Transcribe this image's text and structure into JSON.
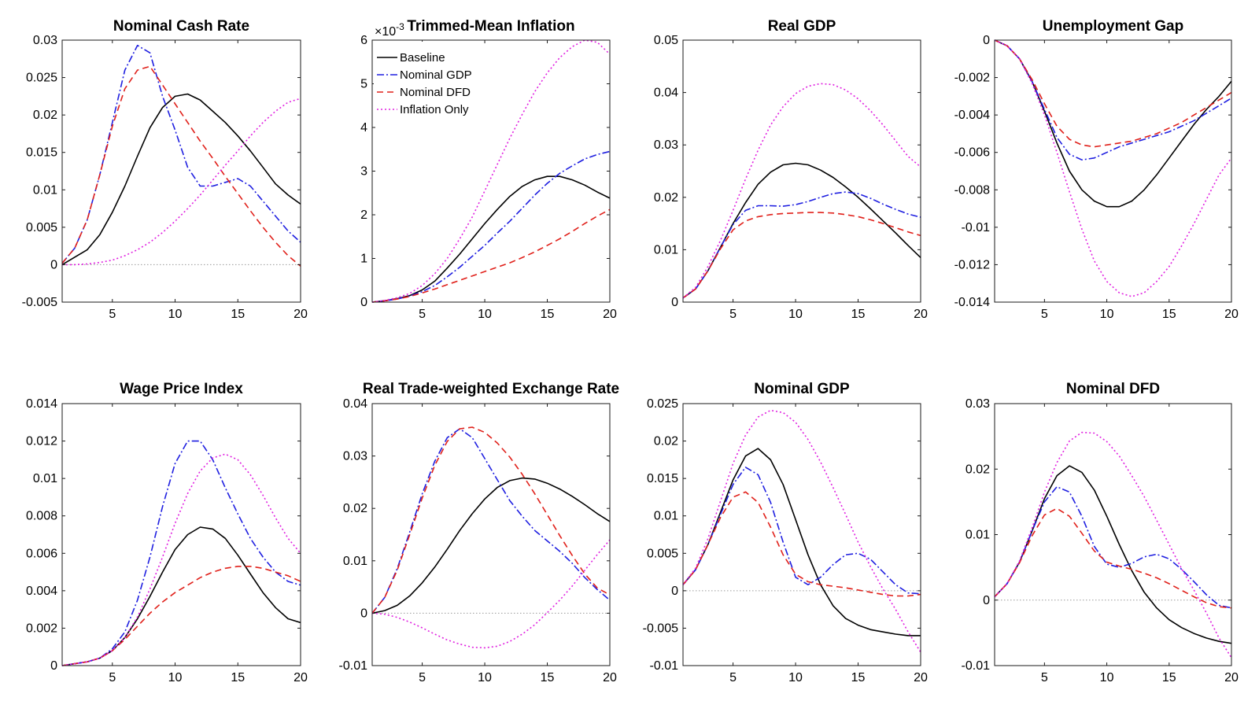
{
  "series_styles": [
    {
      "name": "Baseline",
      "color": "#000000",
      "dash": "none"
    },
    {
      "name": "Nominal GDP",
      "color": "#1f1fe0",
      "dash": "9 3 2 3"
    },
    {
      "name": "Nominal DFD",
      "color": "#e0201a",
      "dash": "8 5"
    },
    {
      "name": "Inflation Only",
      "color": "#e020e0",
      "dash": "2 3"
    }
  ],
  "chart_data": [
    {
      "type": "line",
      "title": "Nominal Cash Rate",
      "xlim": [
        1,
        20
      ],
      "xticks": [
        "5",
        "10",
        "15",
        "20"
      ],
      "ylim": [
        -0.005,
        0.03
      ],
      "yticks": [
        "-0.005",
        "0",
        "0.005",
        "0.01",
        "0.015",
        "0.02",
        "0.025",
        "0.03"
      ],
      "series": [
        {
          "values": [
            0.0,
            0.001,
            0.002,
            0.004,
            0.007,
            0.0105,
            0.0145,
            0.0183,
            0.021,
            0.0225,
            0.0228,
            0.022,
            0.0205,
            0.019,
            0.0172,
            0.0152,
            0.013,
            0.0108,
            0.0093,
            0.0081
          ]
        },
        {
          "values": [
            0.0002,
            0.0022,
            0.006,
            0.012,
            0.019,
            0.026,
            0.0293,
            0.0283,
            0.0225,
            0.018,
            0.013,
            0.0105,
            0.0105,
            0.011,
            0.0115,
            0.0105,
            0.0085,
            0.0065,
            0.0045,
            0.003
          ]
        },
        {
          "values": [
            0.0002,
            0.0022,
            0.006,
            0.012,
            0.0185,
            0.0235,
            0.026,
            0.0265,
            0.024,
            0.0215,
            0.019,
            0.0165,
            0.0142,
            0.0118,
            0.0095,
            0.0072,
            0.005,
            0.003,
            0.0012,
            -0.0002
          ]
        },
        {
          "values": [
            0.0,
            0.0,
            0.0001,
            0.0003,
            0.0006,
            0.0012,
            0.002,
            0.003,
            0.0043,
            0.0058,
            0.0075,
            0.0093,
            0.0113,
            0.0133,
            0.0152,
            0.0172,
            0.019,
            0.0205,
            0.0217,
            0.0222
          ]
        }
      ],
      "zero_line": true
    },
    {
      "type": "line",
      "title": "Trimmed-Mean Inflation",
      "axis_multiplier": "×10",
      "axis_multiplier_exp": "-3",
      "xlim": [
        1,
        20
      ],
      "xticks": [
        "5",
        "10",
        "15",
        "20"
      ],
      "ylim": [
        0,
        6
      ],
      "yticks": [
        "0",
        "1",
        "2",
        "3",
        "4",
        "5",
        "6"
      ],
      "legend": {
        "placement": "top-left",
        "entries": [
          "Baseline",
          "Nominal GDP",
          "Nominal DFD",
          "Inflation Only"
        ]
      },
      "series": [
        {
          "values": [
            0.0,
            0.03,
            0.08,
            0.15,
            0.28,
            0.48,
            0.78,
            1.1,
            1.45,
            1.8,
            2.12,
            2.42,
            2.65,
            2.8,
            2.88,
            2.88,
            2.8,
            2.68,
            2.52,
            2.38
          ]
        },
        {
          "values": [
            0.0,
            0.03,
            0.07,
            0.14,
            0.24,
            0.38,
            0.58,
            0.8,
            1.05,
            1.3,
            1.58,
            1.85,
            2.15,
            2.45,
            2.72,
            2.95,
            3.12,
            3.28,
            3.38,
            3.45
          ]
        },
        {
          "values": [
            0.0,
            0.03,
            0.07,
            0.13,
            0.21,
            0.3,
            0.4,
            0.5,
            0.6,
            0.7,
            0.8,
            0.9,
            1.02,
            1.15,
            1.3,
            1.45,
            1.62,
            1.8,
            1.97,
            2.12
          ]
        },
        {
          "values": [
            0.0,
            0.04,
            0.1,
            0.2,
            0.38,
            0.65,
            1.0,
            1.45,
            1.95,
            2.55,
            3.15,
            3.75,
            4.3,
            4.82,
            5.25,
            5.6,
            5.85,
            6.0,
            5.95,
            5.68
          ]
        }
      ]
    },
    {
      "type": "line",
      "title": "Real GDP",
      "xlim": [
        1,
        20
      ],
      "xticks": [
        "5",
        "10",
        "15",
        "20"
      ],
      "ylim": [
        0,
        0.05
      ],
      "yticks": [
        "0",
        "0.01",
        "0.02",
        "0.03",
        "0.04",
        "0.05"
      ],
      "series": [
        {
          "values": [
            0.0008,
            0.0025,
            0.006,
            0.0105,
            0.015,
            0.019,
            0.0225,
            0.0248,
            0.0262,
            0.0265,
            0.0262,
            0.0252,
            0.0238,
            0.022,
            0.02,
            0.0178,
            0.0155,
            0.0132,
            0.0108,
            0.0085
          ]
        },
        {
          "values": [
            0.0008,
            0.0025,
            0.006,
            0.0105,
            0.0148,
            0.0175,
            0.0184,
            0.0184,
            0.0183,
            0.0186,
            0.0192,
            0.02,
            0.0207,
            0.021,
            0.0207,
            0.0198,
            0.0187,
            0.0177,
            0.0168,
            0.0162
          ]
        },
        {
          "values": [
            0.0008,
            0.0025,
            0.006,
            0.0102,
            0.0138,
            0.0155,
            0.0163,
            0.0167,
            0.0169,
            0.017,
            0.0171,
            0.0171,
            0.017,
            0.0167,
            0.0163,
            0.0157,
            0.015,
            0.0142,
            0.0134,
            0.0127
          ]
        },
        {
          "values": [
            0.0008,
            0.0028,
            0.0068,
            0.0118,
            0.0175,
            0.0235,
            0.029,
            0.0338,
            0.0373,
            0.0398,
            0.0412,
            0.0417,
            0.0415,
            0.0405,
            0.0388,
            0.0365,
            0.0338,
            0.0308,
            0.0278,
            0.0258
          ]
        }
      ]
    },
    {
      "type": "line",
      "title": "Unemployment Gap",
      "xlim": [
        1,
        20
      ],
      "xticks": [
        "5",
        "10",
        "15",
        "20"
      ],
      "ylim": [
        -0.014,
        0
      ],
      "yticks": [
        "-0.014",
        "-0.012",
        "-0.01",
        "-0.008",
        "-0.006",
        "-0.004",
        "-0.002",
        "0"
      ],
      "series": [
        {
          "values": [
            0.0,
            -0.0003,
            -0.001,
            -0.0022,
            -0.0038,
            -0.0055,
            -0.007,
            -0.008,
            -0.0086,
            -0.0089,
            -0.0089,
            -0.0086,
            -0.008,
            -0.0072,
            -0.0063,
            -0.0054,
            -0.0045,
            -0.0037,
            -0.003,
            -0.0022
          ]
        },
        {
          "values": [
            0.0,
            -0.0003,
            -0.001,
            -0.0022,
            -0.0037,
            -0.0052,
            -0.0061,
            -0.0064,
            -0.0063,
            -0.006,
            -0.0057,
            -0.0055,
            -0.0053,
            -0.0051,
            -0.0049,
            -0.0046,
            -0.0043,
            -0.0039,
            -0.0035,
            -0.0031
          ]
        },
        {
          "values": [
            0.0,
            -0.0003,
            -0.001,
            -0.0021,
            -0.0034,
            -0.0046,
            -0.0053,
            -0.0056,
            -0.0057,
            -0.0056,
            -0.0055,
            -0.0054,
            -0.0052,
            -0.005,
            -0.0047,
            -0.0044,
            -0.004,
            -0.0036,
            -0.0032,
            -0.0028
          ]
        },
        {
          "values": [
            0.0,
            -0.0003,
            -0.001,
            -0.0023,
            -0.004,
            -0.006,
            -0.0081,
            -0.0101,
            -0.0118,
            -0.0129,
            -0.0135,
            -0.0137,
            -0.0135,
            -0.0129,
            -0.0121,
            -0.011,
            -0.0098,
            -0.0085,
            -0.0072,
            -0.0063
          ]
        }
      ]
    },
    {
      "type": "line",
      "title": "Wage Price Index",
      "xlim": [
        1,
        20
      ],
      "xticks": [
        "5",
        "10",
        "15",
        "20"
      ],
      "ylim": [
        0,
        0.014
      ],
      "yticks": [
        "0",
        "0.002",
        "0.004",
        "0.006",
        "0.008",
        "0.01",
        "0.012",
        "0.014"
      ],
      "series": [
        {
          "values": [
            0.0,
            0.0001,
            0.0002,
            0.0004,
            0.0008,
            0.0015,
            0.0025,
            0.0037,
            0.005,
            0.0062,
            0.007,
            0.0074,
            0.0073,
            0.0068,
            0.0059,
            0.0049,
            0.0039,
            0.0031,
            0.0025,
            0.0023
          ]
        },
        {
          "values": [
            0.0,
            0.0001,
            0.0002,
            0.0004,
            0.0009,
            0.0018,
            0.0035,
            0.0058,
            0.0085,
            0.0108,
            0.012,
            0.012,
            0.011,
            0.0095,
            0.0081,
            0.0068,
            0.0058,
            0.005,
            0.0045,
            0.0043
          ]
        },
        {
          "values": [
            0.0,
            0.0001,
            0.0002,
            0.0004,
            0.0008,
            0.0014,
            0.0021,
            0.0028,
            0.0034,
            0.0039,
            0.0043,
            0.0047,
            0.005,
            0.0052,
            0.0053,
            0.0053,
            0.0052,
            0.005,
            0.0048,
            0.0045
          ]
        },
        {
          "values": [
            0.0,
            0.0001,
            0.0002,
            0.0004,
            0.0008,
            0.0015,
            0.0026,
            0.0041,
            0.0058,
            0.0076,
            0.0092,
            0.0104,
            0.0111,
            0.0113,
            0.011,
            0.0102,
            0.0091,
            0.0079,
            0.0068,
            0.006
          ]
        }
      ]
    },
    {
      "type": "line",
      "title": "Real Trade-weighted Exchange Rate",
      "xlim": [
        1,
        20
      ],
      "xticks": [
        "5",
        "10",
        "15",
        "20"
      ],
      "ylim": [
        -0.01,
        0.04
      ],
      "yticks": [
        "-0.01",
        "0",
        "0.01",
        "0.02",
        "0.03",
        "0.04"
      ],
      "series": [
        {
          "values": [
            0.0,
            0.0005,
            0.0015,
            0.0033,
            0.0058,
            0.0088,
            0.0122,
            0.0158,
            0.019,
            0.0218,
            0.024,
            0.0253,
            0.0258,
            0.0256,
            0.0248,
            0.0237,
            0.0223,
            0.0207,
            0.019,
            0.0175
          ]
        },
        {
          "values": [
            0.0,
            0.003,
            0.0085,
            0.0155,
            0.0228,
            0.029,
            0.0335,
            0.0352,
            0.0335,
            0.0295,
            0.0255,
            0.0215,
            0.0185,
            0.0158,
            0.0138,
            0.0118,
            0.0095,
            0.0068,
            0.0045,
            0.0025
          ]
        },
        {
          "values": [
            0.0,
            0.003,
            0.0082,
            0.015,
            0.022,
            0.0282,
            0.0328,
            0.0352,
            0.0355,
            0.0345,
            0.0325,
            0.0298,
            0.0265,
            0.0228,
            0.0188,
            0.0148,
            0.011,
            0.0075,
            0.0048,
            0.0035
          ]
        },
        {
          "values": [
            0.0,
            -0.0002,
            -0.0008,
            -0.0017,
            -0.0028,
            -0.004,
            -0.0051,
            -0.0059,
            -0.0065,
            -0.0066,
            -0.0063,
            -0.0054,
            -0.004,
            -0.0022,
            0.0001,
            0.0025,
            0.0052,
            0.0082,
            0.0112,
            0.014
          ]
        }
      ],
      "zero_line": true
    },
    {
      "type": "line",
      "title": "Nominal GDP",
      "xlim": [
        1,
        20
      ],
      "xticks": [
        "5",
        "10",
        "15",
        "20"
      ],
      "ylim": [
        -0.01,
        0.025
      ],
      "yticks": [
        "-0.01",
        "-0.005",
        "0",
        "0.005",
        "0.01",
        "0.015",
        "0.02",
        "0.025"
      ],
      "series": [
        {
          "values": [
            0.0008,
            0.0028,
            0.0062,
            0.0105,
            0.0148,
            0.018,
            0.019,
            0.0175,
            0.0142,
            0.0095,
            0.0048,
            0.0008,
            -0.002,
            -0.0037,
            -0.0046,
            -0.0052,
            -0.0055,
            -0.0058,
            -0.006,
            -0.006
          ]
        },
        {
          "values": [
            0.0008,
            0.0028,
            0.0062,
            0.0102,
            0.0142,
            0.0165,
            0.0155,
            0.0118,
            0.0065,
            0.0018,
            0.0008,
            0.0018,
            0.0035,
            0.0048,
            0.005,
            0.0042,
            0.0025,
            0.0008,
            -0.0003,
            -0.0004
          ]
        },
        {
          "values": [
            0.0008,
            0.0028,
            0.0062,
            0.0098,
            0.0125,
            0.0132,
            0.0118,
            0.0085,
            0.0048,
            0.0022,
            0.0012,
            0.0008,
            0.0006,
            0.0004,
            0.0001,
            -0.0002,
            -0.0005,
            -0.0007,
            -0.0007,
            -0.0005
          ]
        },
        {
          "values": [
            0.0008,
            0.003,
            0.007,
            0.012,
            0.017,
            0.0208,
            0.0232,
            0.0241,
            0.0238,
            0.0225,
            0.0202,
            0.0172,
            0.0138,
            0.0102,
            0.0065,
            0.0032,
            0.0002,
            -0.0025,
            -0.0055,
            -0.0082
          ]
        }
      ],
      "zero_line": true
    },
    {
      "type": "line",
      "title": "Nominal DFD",
      "xlim": [
        1,
        20
      ],
      "xticks": [
        "5",
        "10",
        "15",
        "20"
      ],
      "ylim": [
        -0.01,
        0.03
      ],
      "yticks": [
        "-0.01",
        "0",
        "0.01",
        "0.02",
        "0.03"
      ],
      "series": [
        {
          "values": [
            0.0005,
            0.0025,
            0.0058,
            0.0105,
            0.0155,
            0.019,
            0.0205,
            0.0195,
            0.0168,
            0.0128,
            0.0085,
            0.0045,
            0.0012,
            -0.0012,
            -0.003,
            -0.0042,
            -0.0051,
            -0.0058,
            -0.0063,
            -0.0066
          ]
        },
        {
          "values": [
            0.0005,
            0.0025,
            0.0058,
            0.0105,
            0.015,
            0.0173,
            0.0165,
            0.0128,
            0.0082,
            0.0055,
            0.005,
            0.0056,
            0.0066,
            0.007,
            0.0063,
            0.0047,
            0.0028,
            0.0008,
            -0.0008,
            -0.0012
          ]
        },
        {
          "values": [
            0.0005,
            0.0025,
            0.0057,
            0.0098,
            0.013,
            0.014,
            0.0128,
            0.0102,
            0.0075,
            0.0058,
            0.0052,
            0.0047,
            0.0041,
            0.0034,
            0.0025,
            0.0015,
            0.0005,
            -0.0004,
            -0.001,
            -0.0012
          ]
        },
        {
          "values": [
            0.0005,
            0.0025,
            0.006,
            0.011,
            0.0165,
            0.021,
            0.0243,
            0.0256,
            0.0255,
            0.0242,
            0.022,
            0.019,
            0.0158,
            0.0122,
            0.0085,
            0.0048,
            0.0015,
            -0.002,
            -0.0058,
            -0.0088
          ]
        }
      ],
      "zero_line": true
    }
  ]
}
